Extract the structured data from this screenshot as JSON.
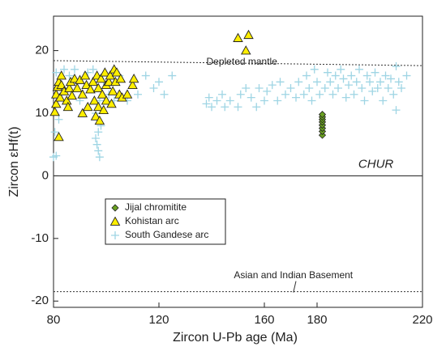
{
  "chart_data": {
    "type": "scatter",
    "x_label": "Zircon U-Pb age (Ma)",
    "y_label": "Zircon εHf(t)",
    "xlim": [
      80,
      220
    ],
    "xticks": [
      80,
      120,
      160,
      180,
      220
    ],
    "ylim": [
      -21,
      25.5
    ],
    "yticks": [
      20,
      10,
      0,
      -10,
      -20
    ],
    "legend": "lower left",
    "reference_lines": [
      {
        "label": "Depleted mantle",
        "x": [
          80,
          220
        ],
        "y": [
          18.4,
          17.6
        ],
        "style": "dotted"
      },
      {
        "label": "CHUR",
        "x": [
          80,
          220
        ],
        "y": [
          0,
          0
        ],
        "style": "solid"
      },
      {
        "label": "Asian and Indian Basement",
        "x": [
          80,
          220
        ],
        "y": [
          -18.5,
          -18.5
        ],
        "style": "dotted"
      }
    ],
    "series": [
      {
        "name": "Jijal chromitite",
        "marker": "diamond",
        "color": "#6aa121",
        "x": [
          182,
          182,
          182,
          182,
          182,
          182,
          182,
          182
        ],
        "y": [
          6.5,
          7.1,
          7.6,
          8.1,
          8.6,
          9.0,
          9.4,
          9.8
        ]
      },
      {
        "name": "Kohistan arc",
        "marker": "triangle",
        "color": "#ffee00",
        "x": [
          80.5,
          81,
          81,
          81.5,
          82,
          82,
          82.5,
          83,
          83,
          84,
          85,
          85.5,
          86,
          86.5,
          87,
          88,
          89,
          90,
          91,
          91,
          92,
          92.5,
          93,
          94,
          95,
          95.5,
          96,
          96.5,
          97,
          97,
          97.5,
          98,
          98.5,
          99,
          99.5,
          100,
          100,
          101,
          101.5,
          102,
          102.5,
          103,
          103.5,
          104,
          105,
          105.5,
          106,
          108,
          110,
          110.5,
          150,
          153,
          154
        ],
        "y": [
          10.2,
          11.5,
          13,
          14.2,
          15,
          6.2,
          12.5,
          14.5,
          16,
          13.5,
          12,
          11,
          14,
          15,
          12.8,
          15.5,
          14,
          15.3,
          10,
          13,
          16,
          14.5,
          11,
          13.8,
          15,
          12,
          9.5,
          16,
          11,
          14,
          8.8,
          15.5,
          13,
          10.5,
          16.5,
          14.5,
          12,
          15,
          16,
          11.5,
          13.5,
          17,
          15,
          16.5,
          13,
          15.5,
          12.5,
          13,
          14.5,
          15.5,
          22,
          20,
          22.5
        ]
      },
      {
        "name": "South Gandese arc",
        "marker": "cross",
        "color": "#9fd5e4",
        "x": [
          80,
          81,
          80.5,
          82,
          81,
          84,
          86,
          88,
          90,
          93,
          95,
          96,
          96.5,
          97,
          97.5,
          97,
          98,
          96,
          97.5,
          99,
          101,
          103,
          105,
          108,
          112,
          115,
          118,
          120,
          122,
          125,
          138,
          139,
          140,
          142,
          144,
          145,
          147,
          150,
          151,
          153,
          155,
          157,
          158,
          160,
          161,
          163,
          165,
          166,
          168,
          170,
          172,
          173,
          175,
          176,
          177,
          178,
          179,
          180,
          181,
          183,
          184,
          185,
          186,
          187,
          188,
          189,
          190,
          191,
          192,
          193,
          194,
          195,
          196,
          197,
          198,
          199,
          200,
          201,
          202,
          203,
          204,
          205,
          206,
          207,
          208,
          209,
          210,
          210,
          211,
          212,
          214
        ],
        "y": [
          3,
          3.2,
          7,
          9,
          16.5,
          17,
          16,
          17,
          12,
          16.5,
          17,
          6,
          5,
          4,
          3,
          7,
          8,
          10,
          12,
          15,
          13,
          12,
          16,
          12,
          13,
          16,
          14,
          15,
          13,
          16,
          11.5,
          12.5,
          11,
          12,
          13,
          11,
          12,
          11,
          13,
          14,
          12.5,
          11,
          14,
          12,
          13.5,
          14.5,
          12,
          15,
          13,
          14,
          12.5,
          15,
          13,
          16,
          14,
          12,
          17,
          15,
          13,
          14,
          16.5,
          15,
          13,
          16,
          14,
          17,
          15.5,
          12.5,
          14.5,
          16,
          13,
          15,
          17,
          14,
          12,
          16,
          15,
          13.5,
          16.5,
          14,
          15,
          12,
          16,
          14,
          15.5,
          13,
          17.5,
          10.5,
          15,
          14,
          16
        ]
      }
    ]
  }
}
